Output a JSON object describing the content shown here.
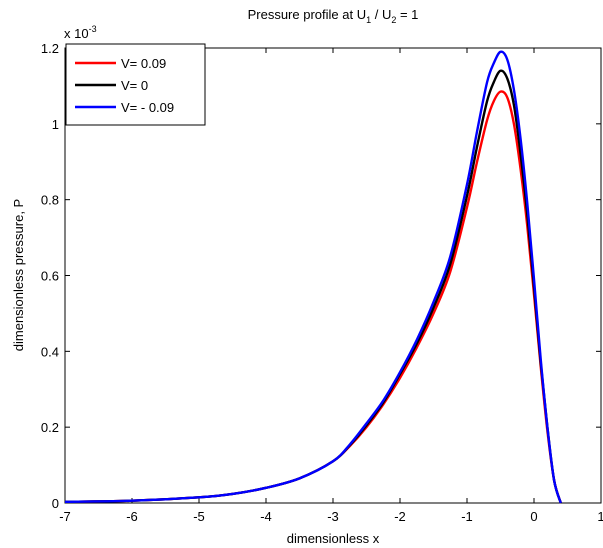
{
  "chart_data": {
    "type": "line",
    "title": {
      "prefix": "Pressure profile at U",
      "sub1": "1",
      "mid": " / U",
      "sub2": "2",
      "suffix": " = 1"
    },
    "xlabel": "dimensionless x",
    "ylabel": "dimensionless pressure, P",
    "exponent_label": {
      "base": "x 10",
      "power": "-3"
    },
    "xlim": [
      -7,
      1
    ],
    "ylim": [
      0,
      1.2
    ],
    "xticks": [
      -7,
      -6,
      -5,
      -4,
      -3,
      -2,
      -1,
      0,
      1
    ],
    "xtick_labels": [
      "-7",
      "-6",
      "-5",
      "-4",
      "-3",
      "-2",
      "-1",
      "0",
      "1"
    ],
    "yticks": [
      0,
      0.2,
      0.4,
      0.6,
      0.8,
      1.0,
      1.2
    ],
    "ytick_labels": [
      "0",
      "0.2",
      "0.4",
      "0.6",
      "0.8",
      "1",
      "1.2"
    ],
    "grid": false,
    "legend_position": "top-left",
    "series": [
      {
        "name": "V= 0.09",
        "color": "#ff0000",
        "x": [
          -7,
          -6,
          -5,
          -4.5,
          -4,
          -3.5,
          -3,
          -2.75,
          -2.5,
          -2.25,
          -2,
          -1.75,
          -1.5,
          -1.25,
          -1,
          -0.85,
          -0.7,
          -0.6,
          -0.5,
          -0.4,
          -0.3,
          -0.2,
          -0.1,
          0,
          0.1,
          0.2,
          0.3,
          0.4
        ],
        "y": [
          0.003,
          0.006,
          0.015,
          0.024,
          0.04,
          0.065,
          0.11,
          0.15,
          0.2,
          0.26,
          0.33,
          0.41,
          0.5,
          0.61,
          0.78,
          0.9,
          1.01,
          1.06,
          1.085,
          1.07,
          1.0,
          0.88,
          0.73,
          0.55,
          0.36,
          0.19,
          0.06,
          0.0
        ]
      },
      {
        "name": "V= 0",
        "color": "#000000",
        "x": [
          -7,
          -6,
          -5,
          -4.5,
          -4,
          -3.5,
          -3,
          -2.75,
          -2.5,
          -2.25,
          -2,
          -1.75,
          -1.5,
          -1.25,
          -1,
          -0.85,
          -0.7,
          -0.6,
          -0.5,
          -0.4,
          -0.3,
          -0.2,
          -0.1,
          0,
          0.1,
          0.2,
          0.3,
          0.4
        ],
        "y": [
          0.003,
          0.006,
          0.015,
          0.024,
          0.04,
          0.065,
          0.11,
          0.152,
          0.205,
          0.265,
          0.34,
          0.42,
          0.515,
          0.63,
          0.81,
          0.94,
          1.06,
          1.11,
          1.14,
          1.12,
          1.05,
          0.92,
          0.76,
          0.57,
          0.37,
          0.2,
          0.06,
          0.0
        ]
      },
      {
        "name": "V= - 0.09",
        "color": "#0000ff",
        "x": [
          -7,
          -6,
          -5,
          -4.5,
          -4,
          -3.5,
          -3,
          -2.75,
          -2.5,
          -2.25,
          -2,
          -1.75,
          -1.5,
          -1.25,
          -1,
          -0.85,
          -0.7,
          -0.6,
          -0.5,
          -0.4,
          -0.3,
          -0.2,
          -0.1,
          0,
          0.1,
          0.2,
          0.3,
          0.4
        ],
        "y": [
          0.003,
          0.006,
          0.015,
          0.024,
          0.04,
          0.065,
          0.11,
          0.154,
          0.21,
          0.27,
          0.345,
          0.43,
          0.53,
          0.65,
          0.84,
          0.98,
          1.11,
          1.16,
          1.19,
          1.17,
          1.09,
          0.96,
          0.79,
          0.59,
          0.38,
          0.2,
          0.06,
          0.0
        ]
      }
    ]
  }
}
